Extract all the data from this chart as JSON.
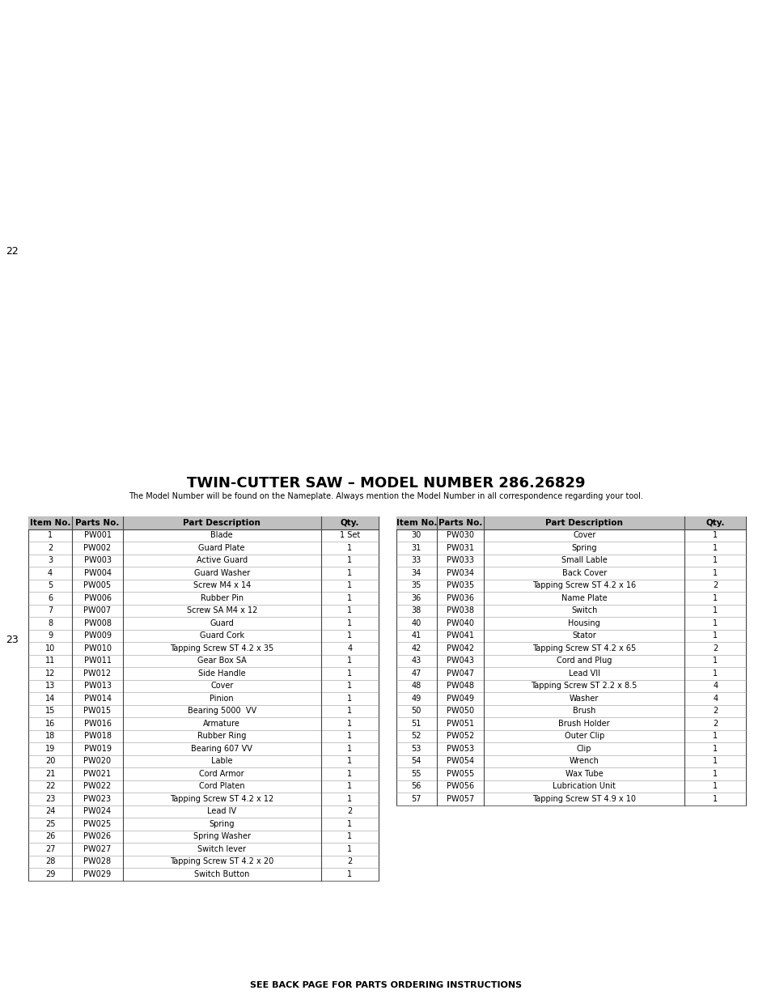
{
  "title": "TWIN-CUTTER SAW – MODEL NUMBER 286.26829",
  "subtitle": "The Model Number will be found on the Nameplate. Always mention the Model Number in all correspondence regarding your tool.",
  "page_number_left": "22",
  "page_number_right": "23",
  "footer": "SEE BACK PAGE FOR PARTS ORDERING INSTRUCTIONS",
  "left_table_headers": [
    "Item No.",
    "Parts No.",
    "Part Description",
    "Qty."
  ],
  "left_table_rows": [
    [
      "1",
      "PW001",
      "Blade",
      "1 Set"
    ],
    [
      "2",
      "PW002",
      "Guard Plate",
      "1"
    ],
    [
      "3",
      "PW003",
      "Active Guard",
      "1"
    ],
    [
      "4",
      "PW004",
      "Guard Washer",
      "1"
    ],
    [
      "5",
      "PW005",
      "Screw M4 x 14",
      "1"
    ],
    [
      "6",
      "PW006",
      "Rubber Pin",
      "1"
    ],
    [
      "7",
      "PW007",
      "Screw SA M4 x 12",
      "1"
    ],
    [
      "8",
      "PW008",
      "Guard",
      "1"
    ],
    [
      "9",
      "PW009",
      "Guard Cork",
      "1"
    ],
    [
      "10",
      "PW010",
      "Tapping Screw ST 4.2 x 35",
      "4"
    ],
    [
      "11",
      "PW011",
      "Gear Box SA",
      "1"
    ],
    [
      "12",
      "PW012",
      "Side Handle",
      "1"
    ],
    [
      "13",
      "PW013",
      "Cover",
      "1"
    ],
    [
      "14",
      "PW014",
      "Pinion",
      "1"
    ],
    [
      "15",
      "PW015",
      "Bearing 5000  VV",
      "1"
    ],
    [
      "16",
      "PW016",
      "Armature",
      "1"
    ],
    [
      "18",
      "PW018",
      "Rubber Ring",
      "1"
    ],
    [
      "19",
      "PW019",
      "Bearing 607 VV",
      "1"
    ],
    [
      "20",
      "PW020",
      "Lable",
      "1"
    ],
    [
      "21",
      "PW021",
      "Cord Armor",
      "1"
    ],
    [
      "22",
      "PW022",
      "Cord Platen",
      "1"
    ],
    [
      "23",
      "PW023",
      "Tapping Screw ST 4.2 x 12",
      "1"
    ],
    [
      "24",
      "PW024",
      "Lead IV",
      "2"
    ],
    [
      "25",
      "PW025",
      "Spring",
      "1"
    ],
    [
      "26",
      "PW026",
      "Spring Washer",
      "1"
    ],
    [
      "27",
      "PW027",
      "Switch lever",
      "1"
    ],
    [
      "28",
      "PW028",
      "Tapping Screw ST 4.2 x 20",
      "2"
    ],
    [
      "29",
      "PW029",
      "Switch Button",
      "1"
    ]
  ],
  "right_table_headers": [
    "Item No.",
    "Parts No.",
    "Part Description",
    "Qty."
  ],
  "right_table_rows": [
    [
      "30",
      "PW030",
      "Cover",
      "1"
    ],
    [
      "31",
      "PW031",
      "Spring",
      "1"
    ],
    [
      "33",
      "PW033",
      "Small Lable",
      "1"
    ],
    [
      "34",
      "PW034",
      "Back Cover",
      "1"
    ],
    [
      "35",
      "PW035",
      "Tapping Screw ST 4.2 x 16",
      "2"
    ],
    [
      "36",
      "PW036",
      "Name Plate",
      "1"
    ],
    [
      "38",
      "PW038",
      "Switch",
      "1"
    ],
    [
      "40",
      "PW040",
      "Housing",
      "1"
    ],
    [
      "41",
      "PW041",
      "Stator",
      "1"
    ],
    [
      "42",
      "PW042",
      "Tapping Screw ST 4.2 x 65",
      "2"
    ],
    [
      "43",
      "PW043",
      "Cord and Plug",
      "1"
    ],
    [
      "47",
      "PW047",
      "Lead VII",
      "1"
    ],
    [
      "48",
      "PW048",
      "Tapping Screw ST 2.2 x 8.5",
      "4"
    ],
    [
      "49",
      "PW049",
      "Washer",
      "4"
    ],
    [
      "50",
      "PW050",
      "Brush",
      "2"
    ],
    [
      "51",
      "PW051",
      "Brush Holder",
      "2"
    ],
    [
      "52",
      "PW052",
      "Outer Clip",
      "1"
    ],
    [
      "53",
      "PW053",
      "Clip",
      "1"
    ],
    [
      "54",
      "PW054",
      "Wrench",
      "1"
    ],
    [
      "55",
      "PW055",
      "Wax Tube",
      "1"
    ],
    [
      "56",
      "PW056",
      "Lubrication Unit",
      "1"
    ],
    [
      "57",
      "PW057",
      "Tapping Screw ST 4.9 x 10",
      "1"
    ]
  ],
  "bg_color": "#ffffff",
  "text_color": "#000000",
  "title_fontsize": 13,
  "subtitle_fontsize": 7.0,
  "table_fontsize": 7.0,
  "header_fontsize": 7.5
}
